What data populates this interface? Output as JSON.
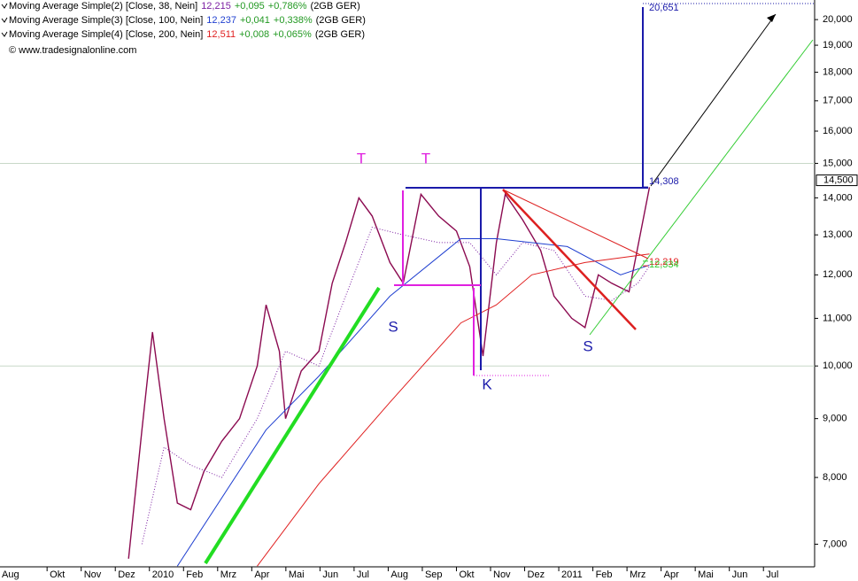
{
  "chart_data": {
    "type": "line",
    "log_scale": true,
    "watermark": "© www.tradesignalonline.com",
    "xlim": [
      0.62,
      24.5
    ],
    "ylim": [
      6690,
      20800
    ],
    "xticks": [
      {
        "value": 0,
        "label": "Aug"
      },
      {
        "value": 2,
        "label": "Okt"
      },
      {
        "value": 3,
        "label": "Nov"
      },
      {
        "value": 4,
        "label": "Dez"
      },
      {
        "value": 5,
        "label": "2010"
      },
      {
        "value": 6,
        "label": "Feb"
      },
      {
        "value": 7,
        "label": "Mrz"
      },
      {
        "value": 8,
        "label": "Apr"
      },
      {
        "value": 9,
        "label": "Mai"
      },
      {
        "value": 10,
        "label": "Jun"
      },
      {
        "value": 11,
        "label": "Jul"
      },
      {
        "value": 12,
        "label": "Aug"
      },
      {
        "value": 13,
        "label": "Sep"
      },
      {
        "value": 14,
        "label": "Okt"
      },
      {
        "value": 15,
        "label": "Nov"
      },
      {
        "value": 16,
        "label": "Dez"
      },
      {
        "value": 17,
        "label": "2011"
      },
      {
        "value": 18,
        "label": "Feb"
      },
      {
        "value": 19,
        "label": "Mrz"
      },
      {
        "value": 20,
        "label": "Apr"
      },
      {
        "value": 21,
        "label": "Mai"
      },
      {
        "value": 22,
        "label": "Jun"
      },
      {
        "value": 23,
        "label": "Jul"
      }
    ],
    "yticks": [
      {
        "value": 7000,
        "label": "7,000"
      },
      {
        "value": 8000,
        "label": "8,000"
      },
      {
        "value": 9000,
        "label": "9,000"
      },
      {
        "value": 10000,
        "label": "10,000"
      },
      {
        "value": 11000,
        "label": "11,000"
      },
      {
        "value": 12000,
        "label": "12,000"
      },
      {
        "value": 13000,
        "label": "13,000"
      },
      {
        "value": 14000,
        "label": "14,000"
      },
      {
        "value": 15000,
        "label": "15,000"
      },
      {
        "value": 16000,
        "label": "16,000"
      },
      {
        "value": 17000,
        "label": "17,000"
      },
      {
        "value": 18000,
        "label": "18,000"
      },
      {
        "value": 19000,
        "label": "19,000"
      },
      {
        "value": 20000,
        "label": "20,000"
      }
    ],
    "grid_lines": [
      10000,
      15000
    ],
    "series": [
      {
        "color": "#8b0a50",
        "width": 1.4,
        "x": [
          4.39,
          4.78,
          5.09,
          5.43,
          5.82,
          6.21,
          6.6,
          7.12,
          7.64,
          8.16,
          8.42,
          8.81,
          8.99,
          9.45,
          9.97,
          10.36,
          10.75,
          11.14,
          11.53,
          12.05,
          12.44,
          12.96,
          13.48,
          14.0,
          14.39,
          14.78,
          15.17,
          15.43,
          15.94,
          16.47,
          16.86,
          17.38,
          17.77,
          18.16,
          18.55,
          19.06,
          19.32,
          19.66
        ],
        "values": [
          6800,
          8800,
          10700,
          9000,
          7600,
          7500,
          8100,
          8600,
          9000,
          10000,
          11300,
          10300,
          9000,
          9900,
          10300,
          11800,
          12800,
          14000,
          13500,
          12300,
          11800,
          14100,
          13500,
          13100,
          12200,
          10200,
          12800,
          14100,
          13400,
          12600,
          11500,
          11000,
          10800,
          12000,
          11800,
          11600,
          12700,
          14300
        ]
      },
      {
        "name": "Moving Average Simple(2) [Close, 38, Nein]",
        "last": "12,215",
        "change": "+0,095",
        "pct": "+0,786%",
        "suffix": "(2GB GER)",
        "color": "#7b1fa2",
        "dash": true,
        "width": 1,
        "x": [
          4.78,
          5.43,
          6.21,
          7.12,
          8.16,
          8.99,
          9.97,
          10.75,
          11.53,
          12.44,
          13.48,
          14.39,
          15.17,
          15.94,
          16.86,
          17.77,
          18.55,
          19.32,
          19.66
        ],
        "values": [
          7000,
          8500,
          8200,
          8000,
          9000,
          10300,
          10000,
          11500,
          13200,
          13000,
          12800,
          12800,
          12000,
          12800,
          12600,
          11500,
          11400,
          11800,
          12215
        ]
      },
      {
        "name": "Moving Average Simple(3) [Close, 100, Nein]",
        "last": "12,237",
        "change": "+0,041",
        "pct": "+0,338%",
        "suffix": "(2GB GER)",
        "color": "#1f3fd0",
        "width": 1,
        "x": [
          5.82,
          8.42,
          9.97,
          12.05,
          14.13,
          15.17,
          17.25,
          18.81,
          19.66
        ],
        "values": [
          6700,
          8800,
          9800,
          11500,
          12900,
          12900,
          12700,
          12000,
          12237
        ]
      },
      {
        "name": "Moving Average Simple(4) [Close, 200, Nein]",
        "last": "12,511",
        "change": "+0,008",
        "pct": "+0,065%",
        "suffix": "(2GB GER)",
        "color": "#e02020",
        "width": 1,
        "x": [
          8.16,
          9.97,
          12.05,
          14.13,
          15.17,
          16.21,
          17.77,
          19.66
        ],
        "values": [
          6700,
          7900,
          9300,
          10900,
          11300,
          12000,
          12300,
          12511
        ]
      }
    ],
    "price_labels": [
      {
        "value": 20651,
        "label": "20,651",
        "color": "#1a1aaa"
      },
      {
        "value": 14308,
        "label": "14,308",
        "color": "#1a1aaa"
      },
      {
        "value": 12219,
        "label": "12,219",
        "color": "#e02020"
      },
      {
        "value": 12334,
        "label": "12,334",
        "color": "#33cc33"
      }
    ],
    "last_price": {
      "value": 14500,
      "label": "14,500"
    },
    "annotations": [
      "T",
      "T",
      "S",
      "K",
      "S"
    ]
  }
}
